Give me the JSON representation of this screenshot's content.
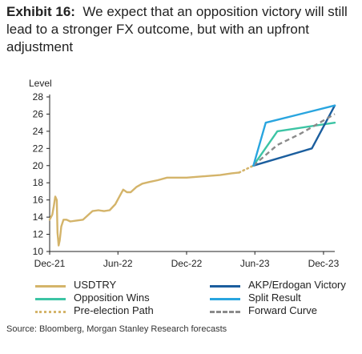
{
  "title": {
    "label": "Exhibit 16:",
    "text": "We expect that an opposition victory will still lead to a stronger FX outcome, but with an upfront adjustment"
  },
  "source": "Source: Bloomberg, Morgan Stanley Research forecasts",
  "colors": {
    "usdtry": "#d4b46a",
    "opposition": "#3cc4a4",
    "akp": "#1b5e9e",
    "split": "#29a5df",
    "forward": "#8a8a8a",
    "axis": "#222222",
    "grid": "#dddddd"
  },
  "chart_data": {
    "type": "line",
    "ylabel": "Level",
    "ylim": [
      10,
      28
    ],
    "yticks": [
      "10",
      "12",
      "14",
      "16",
      "18",
      "20",
      "22",
      "24",
      "26",
      "28"
    ],
    "xlim": [
      "2021-12",
      "2023-12"
    ],
    "xticks": [
      {
        "label": "Dec-21",
        "x": "2021-12"
      },
      {
        "label": "Jun-22",
        "x": "2022-06"
      },
      {
        "label": "Dec-22",
        "x": "2022-12"
      },
      {
        "label": "Jun-23",
        "x": "2023-06"
      },
      {
        "label": "Dec-23",
        "x": "2023-12"
      }
    ],
    "grid": false,
    "legend_position": "bottom",
    "series": [
      {
        "name": "USDTRY",
        "style": "solid",
        "points": [
          [
            "2021-12-01",
            13.7
          ],
          [
            "2021-12-08",
            14.3
          ],
          [
            "2021-12-12",
            15.3
          ],
          [
            "2021-12-16",
            16.4
          ],
          [
            "2021-12-20",
            16.0
          ],
          [
            "2021-12-22",
            12.2
          ],
          [
            "2021-12-25",
            10.7
          ],
          [
            "2021-12-28",
            11.3
          ],
          [
            "2022-01-01",
            12.9
          ],
          [
            "2022-01-07",
            13.7
          ],
          [
            "2022-01-15",
            13.7
          ],
          [
            "2022-01-25",
            13.5
          ],
          [
            "2022-02-10",
            13.6
          ],
          [
            "2022-02-28",
            13.7
          ],
          [
            "2022-03-15",
            14.3
          ],
          [
            "2022-03-25",
            14.7
          ],
          [
            "2022-04-10",
            14.8
          ],
          [
            "2022-04-25",
            14.7
          ],
          [
            "2022-05-10",
            14.8
          ],
          [
            "2022-05-25",
            15.5
          ],
          [
            "2022-06-05",
            16.4
          ],
          [
            "2022-06-15",
            17.2
          ],
          [
            "2022-06-25",
            16.9
          ],
          [
            "2022-07-05",
            16.9
          ],
          [
            "2022-07-20",
            17.5
          ],
          [
            "2022-08-05",
            17.9
          ],
          [
            "2022-08-25",
            18.1
          ],
          [
            "2022-09-15",
            18.3
          ],
          [
            "2022-10-10",
            18.6
          ],
          [
            "2022-11-01",
            18.6
          ],
          [
            "2022-12-01",
            18.6
          ],
          [
            "2022-12-31",
            18.7
          ],
          [
            "2023-01-31",
            18.8
          ],
          [
            "2023-02-28",
            18.9
          ],
          [
            "2023-03-31",
            19.1
          ],
          [
            "2023-04-20",
            19.2
          ]
        ]
      },
      {
        "name": "Pre-election Path",
        "style": "dotted",
        "points": [
          [
            "2023-04-20",
            19.2
          ],
          [
            "2023-05-28",
            20.0
          ]
        ]
      },
      {
        "name": "Opposition Wins",
        "style": "solid",
        "points": [
          [
            "2023-05-28",
            20.0
          ],
          [
            "2023-07-31",
            24.0
          ],
          [
            "2023-12-31",
            25.0
          ]
        ]
      },
      {
        "name": "AKP/Erdogan Victory",
        "style": "solid",
        "points": [
          [
            "2023-05-28",
            20.0
          ],
          [
            "2023-10-31",
            22.0
          ],
          [
            "2023-12-31",
            27.0
          ]
        ]
      },
      {
        "name": "Split Result",
        "style": "solid",
        "points": [
          [
            "2023-05-28",
            20.0
          ],
          [
            "2023-06-30",
            25.0
          ],
          [
            "2023-12-31",
            27.0
          ]
        ]
      },
      {
        "name": "Forward Curve",
        "style": "dashed",
        "points": [
          [
            "2023-05-28",
            20.0
          ],
          [
            "2023-07-31",
            22.4
          ],
          [
            "2023-09-30",
            23.7
          ],
          [
            "2023-12-31",
            26.0
          ]
        ]
      }
    ],
    "legend": [
      {
        "label": "USDTRY",
        "color_key": "usdtry",
        "style": "solid"
      },
      {
        "label": "AKP/Erdogan Victory",
        "color_key": "akp",
        "style": "solid"
      },
      {
        "label": "Opposition Wins",
        "color_key": "opposition",
        "style": "solid"
      },
      {
        "label": "Split Result",
        "color_key": "split",
        "style": "solid"
      },
      {
        "label": "Pre-election Path",
        "color_key": "usdtry",
        "style": "dotted"
      },
      {
        "label": "Forward Curve",
        "color_key": "forward",
        "style": "dashed"
      }
    ]
  }
}
